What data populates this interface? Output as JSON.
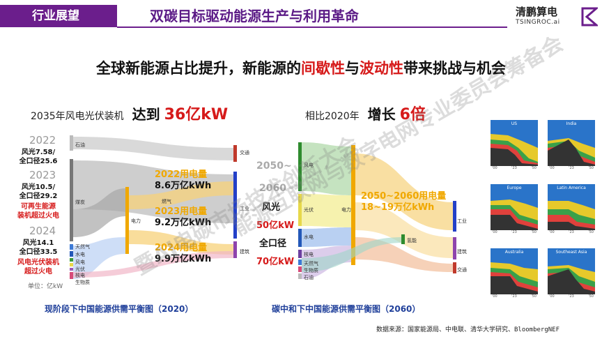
{
  "header": {
    "tab": "行业展望",
    "title": "双碳目标驱动能源生产与利用革命",
    "logo_cn": "清鹏算电",
    "logo_en": "TSINGROC.ai"
  },
  "subtitle": {
    "part1": "全球新能源占比提升，新能源的",
    "red1": "间歇性",
    "mid": "与",
    "red2": "波动性",
    "part2": "带来挑战与机会"
  },
  "left": {
    "heading": "2035年风电光伏装机",
    "heading_big": "达到",
    "heading_value": "36亿kW",
    "years": [
      {
        "year": "2022",
        "lines": [
          "风光7.58/",
          "全口径25.6"
        ]
      },
      {
        "year": "2023",
        "lines": [
          "风光10.5/",
          "全口径29.2"
        ],
        "red": "可再生能源\n装机超过火电"
      },
      {
        "year": "2024",
        "lines": [
          "风光14.1",
          "全口径33.5"
        ],
        "red": "风电光伏装机\n超过火电"
      }
    ],
    "unit": "单位：亿kW",
    "annotations": [
      {
        "title": "2022用电量",
        "value": "8.6万亿kWh"
      },
      {
        "title": "2023用电量",
        "value": "9.2万亿kWh"
      },
      {
        "title": "2024用电量",
        "value": "9.9万亿kWh"
      }
    ],
    "nodes_left": [
      "石油",
      "煤炭",
      "天然气",
      "水电",
      "风电",
      "光伏",
      "核电",
      "生物质",
      "地热"
    ],
    "nodes_mid": [
      "电力",
      "燃气",
      "氢能"
    ],
    "nodes_right": [
      "交通",
      "工业",
      "建筑"
    ],
    "caption": "现阶段下中国能源供需平衡图（2020）"
  },
  "right": {
    "heading": "相比2020年",
    "heading_big": "增长",
    "heading_value": "6倍",
    "side_labels": [
      "2050~",
      "2060",
      "风光",
      "50亿kW",
      "全口径",
      "70亿kW"
    ],
    "annotation_title": "2050~2060用电量",
    "annotation_value": "18~19万亿kWh",
    "nodes_left": [
      "风电",
      "光伏",
      "水电",
      "核电",
      "天然气",
      "生物质",
      "石油"
    ],
    "nodes_mid": [
      "电力",
      "氢能"
    ],
    "nodes_right": [
      "工业",
      "建筑",
      "交通"
    ],
    "caption": "碳中和下中国能源供需平衡图（2060）"
  },
  "minis": [
    {
      "name": "US",
      "ax": [
        "'00",
        "'23",
        "'50"
      ]
    },
    {
      "name": "India",
      "ax": [
        "'00",
        "'23",
        "'50"
      ]
    },
    {
      "name": "Europe",
      "ax": [
        "'00",
        "'23",
        "'50"
      ]
    },
    {
      "name": "Latin America",
      "ax": [
        "'00",
        "'23",
        "'50"
      ]
    },
    {
      "name": "Australia",
      "ax": [
        "'00",
        "'23",
        "'50"
      ]
    },
    {
      "name": "Southeast Asia",
      "ax": [
        "'00",
        "'23",
        "'50"
      ]
    }
  ],
  "source": "数据来源：国家能源局、中电联、清华大学研究、BloombergNEF",
  "watermark": [
    "能源互联网与数字电网专业委员会筹备会",
    "暨AI电碳市场技术创新大会"
  ],
  "colors": {
    "accent": "#6b1e8c",
    "red": "#d61a1a",
    "yellow": "#f0a800",
    "blue": "#1f3f9a"
  }
}
